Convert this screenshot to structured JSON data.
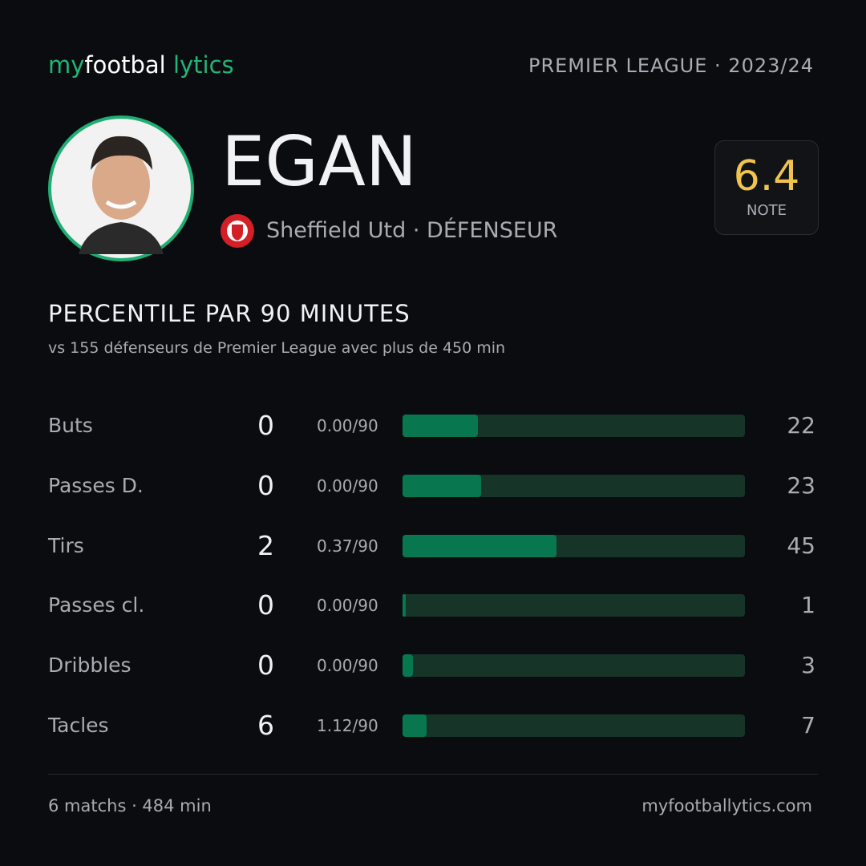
{
  "header": {
    "logo": [
      "my",
      "footbal",
      "lytics"
    ],
    "competition": "PREMIER LEAGUE · 2023/24"
  },
  "player": {
    "name": "EGAN",
    "club": "Sheffield Utd",
    "position": "· DÉFENSEUR"
  },
  "rating": {
    "value": 6.4,
    "label": "NOTE"
  },
  "section": {
    "title": "PERCENTILE PAR 90 MINUTES",
    "subtitle": "vs 155 défenseurs de Premier League avec plus de 450 min"
  },
  "stats": {
    "xlim": [
      0,
      100
    ],
    "bar_color": "#08774f",
    "track_color": "#173428",
    "rows": [
      {
        "label": "Buts",
        "total": 0,
        "per90": "0.00/90",
        "percentile": 22
      },
      {
        "label": "Passes D.",
        "total": 0,
        "per90": "0.00/90",
        "percentile": 23
      },
      {
        "label": "Tirs",
        "total": 2,
        "per90": "0.37/90",
        "percentile": 45
      },
      {
        "label": "Passes cl.",
        "total": 0,
        "per90": "0.00/90",
        "percentile": 1
      },
      {
        "label": "Dribbles",
        "total": 0,
        "per90": "0.00/90",
        "percentile": 3
      },
      {
        "label": "Tacles",
        "total": 6,
        "per90": "1.12/90",
        "percentile": 7
      }
    ]
  },
  "footer": {
    "left": "6 matchs · 484 min",
    "right": "myfootballytics.com"
  }
}
